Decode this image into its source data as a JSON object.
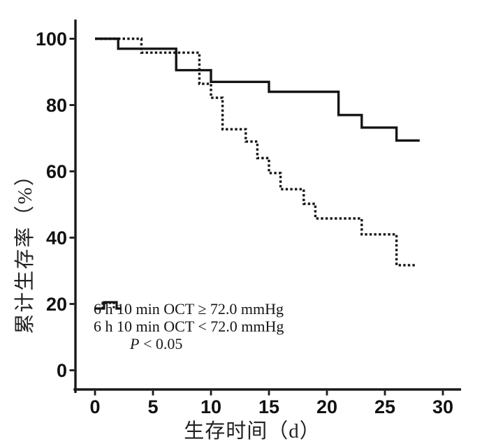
{
  "figure": {
    "background_color": "#ffffff",
    "ink_color": "#1a1a1a",
    "y_axis_label": "累计生存率（%）",
    "x_axis_label": "生存时间（d）",
    "legend": {
      "entries": [
        {
          "style": "solid",
          "label": "6 h 10 min OCT ≥ 72.0 mmHg"
        },
        {
          "style": "dotted",
          "label": "6 h 10 min OCT < 72.0 mmHg"
        }
      ],
      "p_label": "P",
      "p_rest": " < 0.05"
    }
  },
  "chart_data": {
    "type": "line",
    "subtype": "kaplan-meier-step",
    "title": "",
    "xlabel": "生存时间（d）",
    "ylabel": "累计生存率（%）",
    "xlim": [
      0,
      30
    ],
    "ylim": [
      0,
      100
    ],
    "x_ticks": [
      0,
      5,
      10,
      15,
      20,
      25,
      30
    ],
    "y_ticks": [
      0,
      20,
      40,
      60,
      80,
      100
    ],
    "grid": false,
    "legend_position": "lower-left",
    "annotation": "P < 0.05",
    "series": [
      {
        "name": "6 h 10 min OCT ≥ 72.0 mmHg",
        "style": "solid",
        "steps": [
          [
            0,
            100
          ],
          [
            2,
            97
          ],
          [
            7,
            90.5
          ],
          [
            10,
            87
          ],
          [
            15,
            84
          ],
          [
            21,
            77
          ],
          [
            23,
            73.2
          ],
          [
            26,
            69.3
          ]
        ],
        "end_time": 28
      },
      {
        "name": "6 h 10 min OCT < 72.0 mmHg",
        "style": "dotted",
        "steps": [
          [
            0,
            100
          ],
          [
            4,
            95.8
          ],
          [
            9,
            86.4
          ],
          [
            10,
            82.2
          ],
          [
            11,
            72.7
          ],
          [
            13,
            69
          ],
          [
            14,
            64
          ],
          [
            15,
            59.5
          ],
          [
            16,
            54.6
          ],
          [
            18,
            50.2
          ],
          [
            19,
            45.8
          ],
          [
            23,
            41
          ],
          [
            26,
            31.7
          ]
        ],
        "end_time": 27.6
      }
    ]
  }
}
